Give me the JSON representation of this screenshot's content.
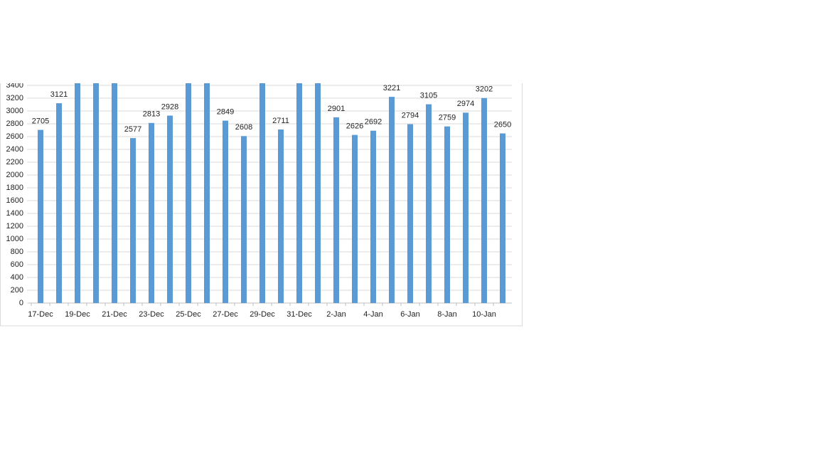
{
  "chart_data": {
    "type": "bar",
    "categories": [
      "17-Dec",
      null,
      "19-Dec",
      null,
      "21-Dec",
      null,
      "23-Dec",
      null,
      "25-Dec",
      null,
      "27-Dec",
      null,
      "29-Dec",
      null,
      "31-Dec",
      null,
      "2-Jan",
      null,
      "4-Jan",
      null,
      "6-Jan",
      null,
      "8-Jan",
      null,
      "10-Jan",
      null
    ],
    "values": [
      2705,
      3121,
      3500,
      3500,
      3500,
      2577,
      2813,
      2928,
      3500,
      3500,
      2849,
      2608,
      3500,
      2711,
      3500,
      3500,
      2901,
      2626,
      2692,
      3221,
      2794,
      3105,
      2759,
      2974,
      3202,
      2650
    ],
    "color": "#5b9bd5",
    "ylim": [
      0,
      3400
    ],
    "yticks": [
      0,
      200,
      400,
      600,
      800,
      1000,
      1200,
      1400,
      1600,
      1800,
      2000,
      2200,
      2400,
      2600,
      2800,
      3000,
      3200,
      3400
    ],
    "grid": true
  }
}
